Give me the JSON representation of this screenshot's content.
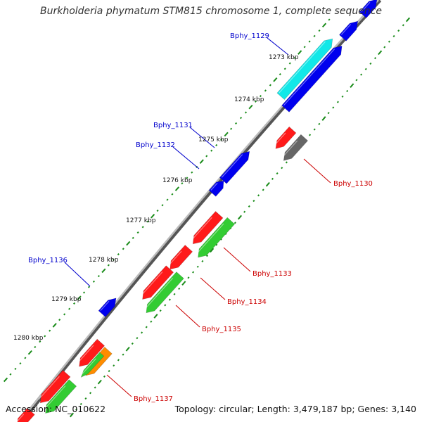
{
  "title": "Burkholderia phymatum STM815 chromosome 1, complete sequence",
  "footer": {
    "accession": "Accession: NC_010622",
    "summary": "Topology: circular; Length: 3,479,187 bp; Genes: 3,140"
  },
  "colors": {
    "backbone": "#8a8a8a",
    "red": "#ff1a1a",
    "green": "#33cc33",
    "blue": "#0000ee",
    "cyan": "#11e8e8",
    "gray": "#666666",
    "orange": "#ff8c00",
    "tick": "#1a8c1a",
    "blue_label": "#0000cc",
    "red_label": "#cc0000"
  },
  "ruler": [
    {
      "label": "1273 kbp"
    },
    {
      "label": "1274 kbp"
    },
    {
      "label": "1275 kbp"
    },
    {
      "label": "1276 kbp"
    },
    {
      "label": "1277 kbp"
    },
    {
      "label": "1278 kbp"
    },
    {
      "label": "1279 kbp"
    },
    {
      "label": "1280 kbp"
    }
  ],
  "genes": [
    {
      "name": "Bphy_1129",
      "color": "cyan",
      "strand": "forward"
    },
    {
      "name": "Bphy_1130",
      "color": "gray",
      "strand": "reverse"
    },
    {
      "name": "Bphy_1131",
      "color": "blue",
      "strand": "forward"
    },
    {
      "name": "Bphy_1132",
      "color": "blue",
      "strand": "forward"
    },
    {
      "name": "Bphy_1133",
      "color": "green",
      "strand": "reverse"
    },
    {
      "name": "Bphy_1134",
      "color": "red",
      "strand": "reverse"
    },
    {
      "name": "Bphy_1135",
      "color": "green",
      "strand": "reverse"
    },
    {
      "name": "Bphy_1136",
      "color": "blue",
      "strand": "forward"
    },
    {
      "name": "Bphy_1137",
      "color": "orange",
      "strand": "reverse"
    }
  ]
}
